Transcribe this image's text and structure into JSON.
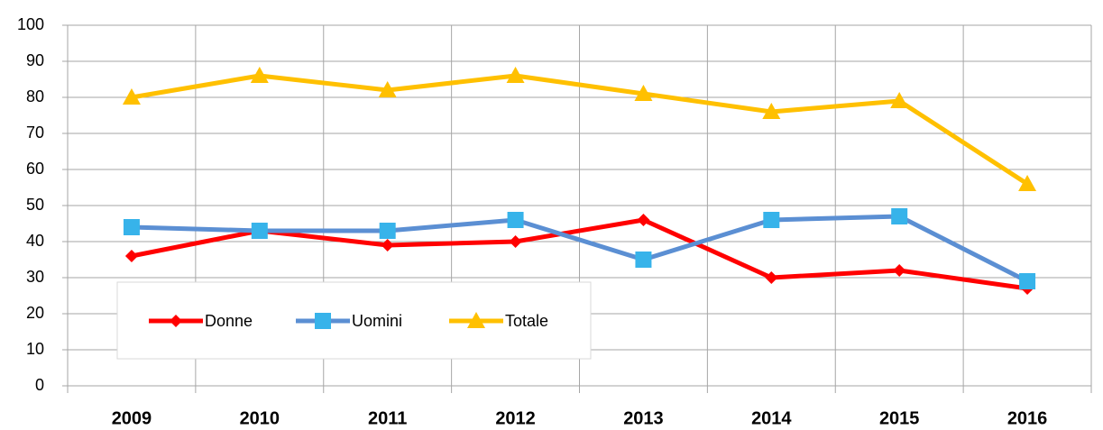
{
  "chart_data": {
    "type": "line",
    "categories": [
      "2009",
      "2010",
      "2011",
      "2012",
      "2013",
      "2014",
      "2015",
      "2016"
    ],
    "series": [
      {
        "name": "Donne",
        "color": "#ff0000",
        "marker": "diamond",
        "values": [
          36,
          43,
          39,
          40,
          46,
          30,
          32,
          27
        ]
      },
      {
        "name": "Uomini",
        "color": "#5b8fd3",
        "marker_color": "#37b3ea",
        "marker": "square",
        "values": [
          44,
          43,
          43,
          46,
          35,
          46,
          47,
          29
        ]
      },
      {
        "name": "Totale",
        "color": "#ffc000",
        "marker": "triangle",
        "values": [
          80,
          86,
          82,
          86,
          81,
          76,
          79,
          56
        ]
      }
    ],
    "ylim": [
      0,
      100
    ],
    "yticks": [
      0,
      10,
      20,
      30,
      40,
      50,
      60,
      70,
      80,
      90,
      100
    ],
    "grid": true,
    "legend": "lower left"
  }
}
